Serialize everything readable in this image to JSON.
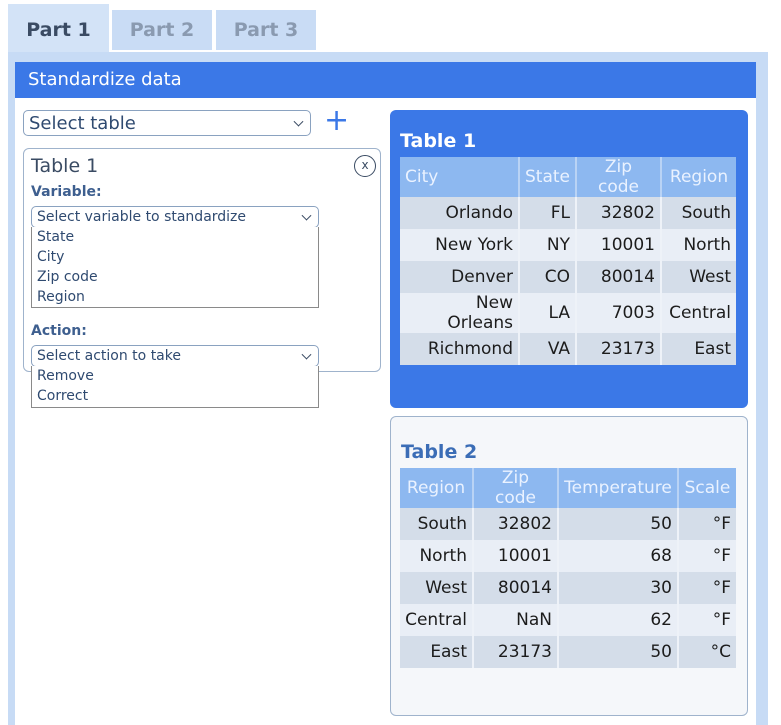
{
  "tabs": [
    {
      "label": "Part 1",
      "active": true
    },
    {
      "label": "Part 2"
    },
    {
      "label": "Part 3"
    }
  ],
  "header": {
    "title": "Standardize data"
  },
  "left": {
    "select_table": {
      "placeholder": "Select table"
    },
    "add_icon": "plus-icon",
    "table_card": {
      "title": "Table 1",
      "close_label": "x",
      "variable_label": "Variable:",
      "variable_select": "Select variable to standardize",
      "variable_options": [
        "State",
        "City",
        "Zip code",
        "Region"
      ],
      "action_label": "Action:",
      "action_select": "Select action to take",
      "action_options": [
        "Remove",
        "Correct"
      ]
    }
  },
  "table1": {
    "title": "Table 1",
    "columns": [
      "City",
      "State",
      "Zip code",
      "Region"
    ],
    "rows": [
      [
        "Orlando",
        "FL",
        "32802",
        "South"
      ],
      [
        "New York",
        "NY",
        "10001",
        "North"
      ],
      [
        "Denver",
        "CO",
        "80014",
        "West"
      ],
      [
        "New Orleans",
        "LA",
        "7003",
        "Central"
      ],
      [
        "Richmond",
        "VA",
        "23173",
        "East"
      ]
    ]
  },
  "table2": {
    "title": "Table 2",
    "columns": [
      "Region",
      "Zip code",
      "Temperature",
      "Scale"
    ],
    "rows": [
      [
        "South",
        "32802",
        "50",
        "°F"
      ],
      [
        "North",
        "10001",
        "68",
        "°F"
      ],
      [
        "West",
        "80014",
        "30",
        "°F"
      ],
      [
        "Central",
        "NaN",
        "62",
        "°F"
      ],
      [
        "East",
        "23173",
        "50",
        "°C"
      ]
    ]
  },
  "colors": {
    "accent": "#3b78e7",
    "header_cell": "#8db8f0",
    "tab_bg": "#c9dcf5"
  }
}
